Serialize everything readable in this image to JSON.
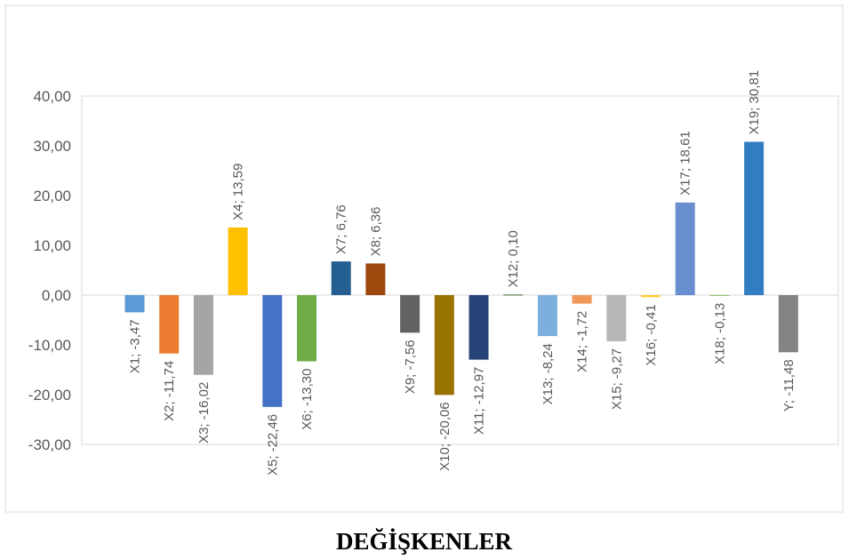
{
  "chart_data": {
    "type": "bar",
    "title": "",
    "xlabel": "DEĞİŞKENLER",
    "ylabel": "",
    "ylim": [
      -30,
      40
    ],
    "ytick_values": [
      40,
      30,
      20,
      10,
      0,
      -10,
      -20,
      -30
    ],
    "ytick_labels": [
      "40,00",
      "30,00",
      "20,00",
      "10,00",
      "0,00",
      "-10,00",
      "-20,00",
      "-30,00"
    ],
    "grid": false,
    "legend": "none",
    "categories": [
      "X1",
      "X2",
      "X3",
      "X4",
      "X5",
      "X6",
      "X7",
      "X8",
      "X9",
      "X10",
      "X11",
      "X12",
      "X13",
      "X14",
      "X15",
      "X16",
      "X17",
      "X18",
      "X19",
      "Y"
    ],
    "values": [
      -3.47,
      -11.74,
      -16.02,
      13.59,
      -22.46,
      -13.3,
      6.76,
      6.36,
      -7.56,
      -20.06,
      -12.97,
      0.1,
      -8.24,
      -1.72,
      -9.27,
      -0.41,
      18.61,
      -0.13,
      30.81,
      -11.48
    ],
    "data_labels": [
      "X1; -3,47",
      "X2; -11,74",
      "X3; -16,02",
      "X4; 13,59",
      "X5; -22,46",
      "X6; -13,30",
      "X7; 6,76",
      "X8; 6,36",
      "X9; -7,56",
      "X10; -20,06",
      "X11; -12,97",
      "X12; 0,10",
      "X13; -8,24",
      "X14; -1,72",
      "X15; -9,27",
      "X16; -0,41",
      "X17; 18,61",
      "X18; -0,13",
      "X19; 30,81",
      "Y; -11,48"
    ],
    "colors": [
      "#5B9BD5",
      "#ED7D31",
      "#A5A5A5",
      "#FFC000",
      "#4472C4",
      "#70AD47",
      "#255E91",
      "#9E480E",
      "#636363",
      "#997300",
      "#264478",
      "#43682B",
      "#7CAFDD",
      "#F1975A",
      "#B7B7B7",
      "#FFCD33",
      "#698ED0",
      "#8CC168",
      "#327DC2",
      "#848484"
    ]
  }
}
